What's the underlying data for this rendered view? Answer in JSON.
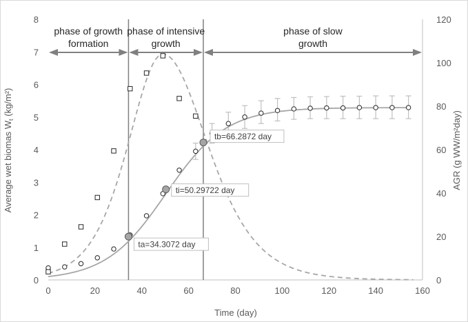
{
  "chart_data": {
    "type": "scatter",
    "xlabel": "Time (day)",
    "ylabel": "Average wet biomas W",
    "ylabel_sub": "t",
    "ylabel_unit": " (kg/m²)",
    "y2label": "AGR (g WW/m²day)",
    "xlim": [
      0,
      160
    ],
    "ylim": [
      0,
      8
    ],
    "y2lim": [
      0,
      120
    ],
    "x_ticks": [
      "0",
      "20",
      "40",
      "60",
      "80",
      "100",
      "120",
      "140",
      "160"
    ],
    "y_ticks": [
      "0",
      "1",
      "2",
      "3",
      "4",
      "5",
      "6",
      "7",
      "8"
    ],
    "y2_ticks": [
      "0",
      "20",
      "40",
      "60",
      "80",
      "100",
      "120"
    ],
    "grid": false,
    "colors": {
      "axis": "#bfbfbf",
      "curve": "#a6a6a6",
      "marker": "#262626",
      "phase_line": "#808080",
      "error": "#bfbfbf",
      "key_point": "#a6a6a6"
    },
    "series": [
      {
        "kind": "biomass_observed",
        "marker": "circle",
        "x": [
          0,
          7,
          14,
          21,
          28,
          35,
          42,
          49,
          56,
          63,
          70,
          77,
          84,
          91,
          98,
          105,
          112,
          119,
          126,
          133,
          140,
          147,
          154
        ],
        "y": [
          0.37,
          0.4,
          0.5,
          0.68,
          0.95,
          1.38,
          1.97,
          2.65,
          3.37,
          3.95,
          4.5,
          4.8,
          5.0,
          5.12,
          5.2,
          5.25,
          5.27,
          5.28,
          5.28,
          5.29,
          5.29,
          5.29,
          5.29
        ],
        "error_from_index": 9,
        "error_upper": [
          4.2,
          4.8,
          5.15,
          5.35,
          5.5,
          5.57,
          5.6,
          5.62,
          5.63,
          5.64,
          5.64,
          5.65,
          5.65,
          5.65
        ],
        "error_lower": [
          3.7,
          4.2,
          4.5,
          4.65,
          4.8,
          4.88,
          4.93,
          4.95,
          4.95,
          4.95,
          4.95,
          4.95,
          4.95,
          4.95
        ]
      },
      {
        "kind": "biomass_fitted",
        "line": "solid",
        "asymptote": 5.29,
        "inflection_x": 50.29722,
        "growth_rate": 0.0777
      },
      {
        "kind": "agr_observed",
        "marker": "square",
        "axis": "right",
        "x": [
          0,
          7,
          14,
          21,
          28,
          35,
          42,
          49,
          56,
          63
        ],
        "y": [
          0.25,
          1.1,
          1.63,
          2.53,
          3.96,
          5.87,
          6.35,
          6.88,
          5.57,
          5.03
        ]
      },
      {
        "kind": "agr_fitted",
        "line": "dashed",
        "axis": "right",
        "peak_x": 49,
        "peak": 104,
        "rate_up": 0.1,
        "rate_down": 0.0777
      }
    ],
    "phase_boundaries": [
      34.3072,
      66.2872
    ],
    "phases": [
      {
        "label_line1": "phase of growth",
        "label_line2": "formation",
        "x_from": 0,
        "x_to": 34.3072
      },
      {
        "label_line1": "phase of intensive",
        "label_line2": "growth",
        "x_from": 34.3072,
        "x_to": 66.2872
      },
      {
        "label_line1": "phase of slow",
        "label_line2": "growth",
        "x_from": 66.2872,
        "x_to": 160
      }
    ],
    "annotations": [
      {
        "x": 34.3072,
        "y": 1.33,
        "label": "ta=34.3072 day"
      },
      {
        "x": 50.29722,
        "y": 2.78,
        "label": "ti=50.29722 day"
      },
      {
        "x": 66.2872,
        "y": 4.22,
        "label": "tb=66.2872 day"
      }
    ]
  }
}
